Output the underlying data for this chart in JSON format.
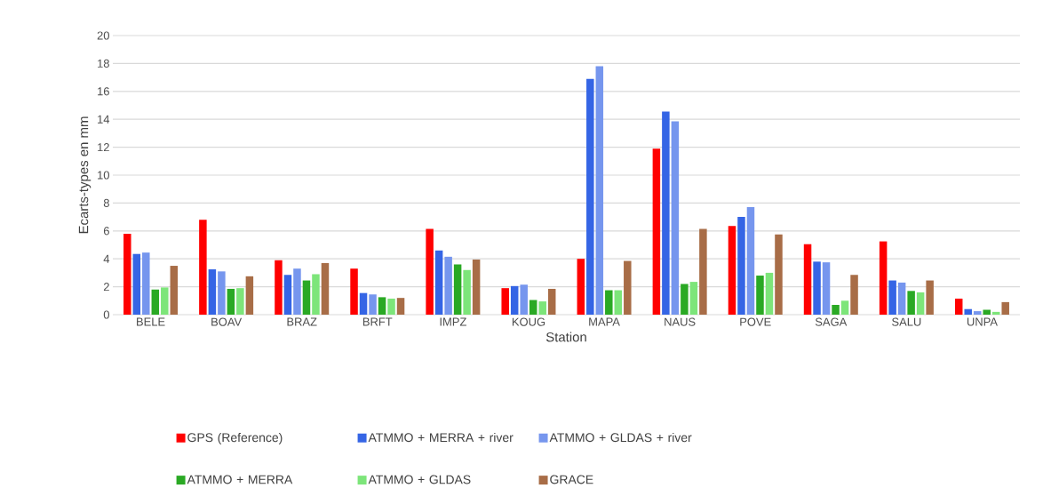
{
  "chart_data": {
    "type": "bar",
    "xlabel": "Station",
    "ylabel": "Ecarts-types en mm",
    "categories": [
      "BELE",
      "BOAV",
      "BRAZ",
      "BRFT",
      "IMPZ",
      "KOUG",
      "MAPA",
      "NAUS",
      "POVE",
      "SAGA",
      "SALU",
      "UNPA"
    ],
    "series": [
      {
        "name": "GPS (Reference)",
        "color": "#ff0000",
        "values": [
          5.8,
          6.8,
          3.9,
          3.3,
          6.15,
          1.9,
          4.0,
          11.9,
          6.35,
          5.05,
          5.25,
          1.15
        ]
      },
      {
        "name": "ATMMO + MERRA + river",
        "color": "#3565e5",
        "values": [
          4.35,
          3.25,
          2.85,
          1.55,
          4.6,
          2.05,
          16.9,
          14.55,
          7.0,
          3.8,
          2.45,
          0.4
        ]
      },
      {
        "name": "ATMMO + GLDAS + river",
        "color": "#7696ee",
        "values": [
          4.45,
          3.1,
          3.3,
          1.45,
          4.15,
          2.15,
          17.8,
          13.85,
          7.7,
          3.75,
          2.3,
          0.25
        ]
      },
      {
        "name": "ATMMO + MERRA",
        "color": "#2aa924",
        "values": [
          1.8,
          1.85,
          2.45,
          1.25,
          3.6,
          1.05,
          1.75,
          2.2,
          2.8,
          0.7,
          1.7,
          0.35
        ]
      },
      {
        "name": "ATMMO + GLDAS",
        "color": "#7de57a",
        "values": [
          1.95,
          1.9,
          2.9,
          1.15,
          3.2,
          0.95,
          1.75,
          2.35,
          3.0,
          1.0,
          1.6,
          0.2
        ]
      },
      {
        "name": "GRACE",
        "color": "#a86d47",
        "values": [
          3.5,
          2.75,
          3.7,
          1.2,
          3.95,
          1.85,
          3.85,
          6.15,
          5.75,
          2.85,
          2.45,
          0.9
        ]
      }
    ],
    "ylim": [
      0,
      20
    ],
    "yticks": [
      0,
      2,
      4,
      6,
      8,
      10,
      12,
      14,
      16,
      18,
      20
    ],
    "grid": "y",
    "legend": "bottom"
  }
}
